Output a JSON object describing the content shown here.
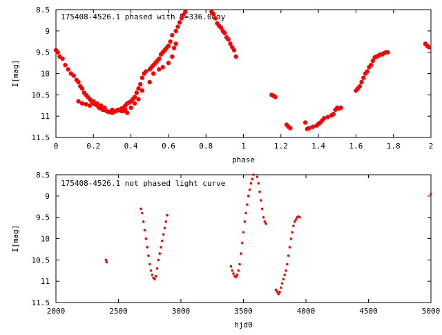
{
  "chart_data": [
    {
      "type": "scatter",
      "title": "175408-4526.1 phased with P=336.0day",
      "xlabel": "phase",
      "ylabel": "I[mag]",
      "xlim": [
        0,
        2
      ],
      "ylim": [
        11.5,
        8.5
      ],
      "y_inverted": true,
      "xticks": [
        "0",
        "0.2",
        "0.4",
        "0.6",
        "0.8",
        "1",
        "1.2",
        "1.4",
        "1.6",
        "1.8",
        "2"
      ],
      "yticks": [
        "8.5",
        "9",
        "9.5",
        "10",
        "10.5",
        "11",
        "11.5"
      ],
      "grid": false,
      "marker_color": "#ff0000",
      "series": [
        {
          "x": [
            0.0,
            0.01,
            0.02,
            0.035,
            0.05,
            0.065,
            0.08,
            0.095,
            0.11,
            0.12,
            0.13,
            0.14,
            0.15,
            0.16,
            0.17,
            0.18,
            0.19,
            0.2,
            0.21,
            0.22,
            0.23,
            0.24,
            0.25,
            0.26,
            0.27,
            0.28,
            0.29,
            0.3,
            0.31,
            0.32,
            0.33,
            0.34,
            0.35,
            0.36,
            0.37,
            0.38,
            0.39,
            0.4,
            0.41,
            0.42,
            0.43,
            0.44,
            0.45,
            0.46,
            0.47,
            0.48,
            0.5,
            0.51,
            0.52,
            0.53,
            0.54,
            0.55,
            0.56,
            0.57,
            0.58,
            0.59,
            0.6,
            0.61,
            0.62,
            0.64,
            0.65,
            0.66,
            0.67,
            0.68,
            0.69,
            0.2,
            0.22,
            0.24,
            0.26,
            0.3,
            0.33,
            0.35,
            0.37,
            0.4,
            0.42,
            0.44,
            0.46,
            0.5,
            0.52,
            0.55,
            0.57,
            0.6,
            0.62,
            0.12,
            0.14,
            0.16,
            0.18,
            0.36,
            0.38,
            0.63,
            0.64,
            0.83,
            0.84,
            0.85,
            0.86,
            0.87,
            0.88,
            0.89,
            0.9,
            0.91,
            0.92,
            0.93,
            0.94,
            0.95,
            0.96,
            1.15,
            1.16,
            1.17,
            1.23,
            1.24,
            1.25,
            1.33,
            1.34,
            1.35,
            1.37,
            1.39,
            1.4,
            1.41,
            1.42,
            1.43,
            1.45,
            1.47,
            1.48,
            1.49,
            1.5,
            1.51,
            1.52,
            1.6,
            1.61,
            1.62,
            1.63,
            1.64,
            1.65,
            1.66,
            1.67,
            1.68,
            1.69,
            1.7,
            1.71,
            1.72,
            1.73,
            1.74,
            1.75,
            1.76,
            1.77,
            1.97,
            1.98,
            1.99
          ],
          "y": [
            9.45,
            9.5,
            9.6,
            9.65,
            9.8,
            9.9,
            10.0,
            10.05,
            10.15,
            10.2,
            10.3,
            10.35,
            10.45,
            10.5,
            10.55,
            10.6,
            10.65,
            10.7,
            10.72,
            10.75,
            10.8,
            10.82,
            10.85,
            10.85,
            10.88,
            10.9,
            10.9,
            10.92,
            10.9,
            10.88,
            10.86,
            10.85,
            10.82,
            10.8,
            10.75,
            10.7,
            10.68,
            10.65,
            10.6,
            10.55,
            10.45,
            10.35,
            10.25,
            10.1,
            10.0,
            9.95,
            9.9,
            9.85,
            9.8,
            9.75,
            9.7,
            9.65,
            9.55,
            9.5,
            9.45,
            9.4,
            9.35,
            9.25,
            9.1,
            9.0,
            8.9,
            8.8,
            8.7,
            8.62,
            8.55,
            10.65,
            10.7,
            10.75,
            10.8,
            10.85,
            10.85,
            10.88,
            10.85,
            10.8,
            10.7,
            10.6,
            10.4,
            10.2,
            10.0,
            9.9,
            9.85,
            9.75,
            9.6,
            10.65,
            10.7,
            10.72,
            10.75,
            10.88,
            10.92,
            9.4,
            9.3,
            8.55,
            8.6,
            8.7,
            8.82,
            8.88,
            8.92,
            9.0,
            9.05,
            9.15,
            9.2,
            9.3,
            9.38,
            9.45,
            9.6,
            10.5,
            10.52,
            10.55,
            11.2,
            11.25,
            11.28,
            11.15,
            11.3,
            11.28,
            11.25,
            11.22,
            11.18,
            11.15,
            11.1,
            11.05,
            11.02,
            10.98,
            10.95,
            10.85,
            10.8,
            10.82,
            10.8,
            10.4,
            10.35,
            10.3,
            10.2,
            10.1,
            10.0,
            9.95,
            9.85,
            9.8,
            9.7,
            9.62,
            9.6,
            9.58,
            9.55,
            9.55,
            9.52,
            9.5,
            9.5,
            9.3,
            9.35,
            9.38
          ]
        }
      ]
    },
    {
      "type": "scatter",
      "title": "175408-4526.1 not phased light curve",
      "xlabel": "hjd0",
      "ylabel": "I[mag]",
      "xlim": [
        2000,
        5000
      ],
      "ylim": [
        11.5,
        8.5
      ],
      "y_inverted": true,
      "xticks": [
        "2000",
        "2500",
        "3000",
        "3500",
        "4000",
        "4500",
        "5000"
      ],
      "yticks": [
        "8.5",
        "9",
        "9.5",
        "10",
        "10.5",
        "11",
        "11.5"
      ],
      "grid": false,
      "marker_color": "#ff0000",
      "series": [
        {
          "x": [
            2400,
            2405,
            2680,
            2690,
            2700,
            2710,
            2720,
            2730,
            2740,
            2750,
            2760,
            2770,
            2780,
            2790,
            2800,
            2810,
            2820,
            2830,
            2840,
            2850,
            2860,
            2870,
            2880,
            2890,
            3400,
            3410,
            3420,
            3430,
            3440,
            3450,
            3460,
            3470,
            3480,
            3490,
            3500,
            3510,
            3520,
            3530,
            3540,
            3550,
            3560,
            3570,
            3580,
            3590,
            3600,
            3610,
            3620,
            3630,
            3640,
            3650,
            3660,
            3670,
            3680,
            3760,
            3770,
            3780,
            3790,
            3800,
            3810,
            3820,
            3830,
            3840,
            3850,
            3860,
            3870,
            3880,
            3890,
            3900,
            3910,
            3920,
            3930,
            3940,
            3950,
            5000
          ],
          "y": [
            10.5,
            10.55,
            9.3,
            9.4,
            9.6,
            9.8,
            10.0,
            10.2,
            10.4,
            10.6,
            10.75,
            10.85,
            10.92,
            10.95,
            10.88,
            10.7,
            10.5,
            10.35,
            10.2,
            10.05,
            9.9,
            9.75,
            9.6,
            9.45,
            10.65,
            10.75,
            10.82,
            10.88,
            10.9,
            10.85,
            10.75,
            10.6,
            10.35,
            10.1,
            9.85,
            9.6,
            9.4,
            9.2,
            9.0,
            8.85,
            8.7,
            8.6,
            8.5,
            8.45,
            8.42,
            8.55,
            8.7,
            8.9,
            9.1,
            9.3,
            9.5,
            9.6,
            9.65,
            11.2,
            11.25,
            11.3,
            11.25,
            11.15,
            11.05,
            10.95,
            10.85,
            10.75,
            10.6,
            10.4,
            10.2,
            10.0,
            9.85,
            9.7,
            9.6,
            9.55,
            9.5,
            9.48,
            9.5,
            8.95
          ]
        }
      ]
    }
  ]
}
